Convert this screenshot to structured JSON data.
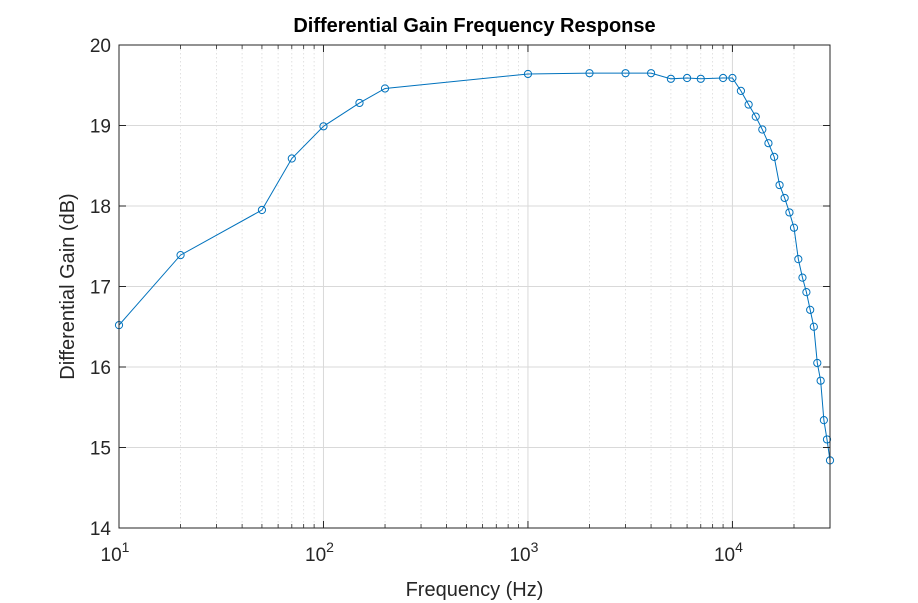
{
  "chart_data": {
    "type": "line",
    "title": "Differential Gain Frequency Response",
    "xlabel": "Frequency (Hz)",
    "ylabel": "Differential Gain (dB)",
    "xscale": "log",
    "xlim": [
      10,
      30000
    ],
    "ylim": [
      14,
      20
    ],
    "x_ticks": [
      10,
      100,
      1000,
      10000
    ],
    "x_tick_base": "10",
    "x_tick_exponents": [
      "1",
      "2",
      "3",
      "4"
    ],
    "y_ticks": [
      "14",
      "15",
      "16",
      "17",
      "18",
      "19",
      "20"
    ],
    "grid": true,
    "minor_grid_x": true,
    "legend": "none",
    "colors": {
      "line": "#0072BD",
      "grid": "#d9d9d9",
      "axes": "#262626"
    },
    "series": [
      {
        "marker": "circle",
        "x": [
          10,
          20,
          50,
          70,
          100,
          150,
          200,
          1000,
          2000,
          3000,
          4000,
          5000,
          6000,
          7000,
          9000,
          10000,
          11000,
          12000,
          13000,
          14000,
          15000,
          16000,
          17000,
          18000,
          19000,
          20000,
          21000,
          22000,
          23000,
          24000,
          25000,
          26000,
          27000,
          28000,
          29000,
          30000
        ],
        "y": [
          16.52,
          17.39,
          17.95,
          18.59,
          18.99,
          19.28,
          19.46,
          19.64,
          19.65,
          19.65,
          19.65,
          19.58,
          19.59,
          19.58,
          19.59,
          19.59,
          19.43,
          19.26,
          19.11,
          18.95,
          18.78,
          18.61,
          18.26,
          18.1,
          17.92,
          17.73,
          17.34,
          17.11,
          16.93,
          16.71,
          16.5,
          16.05,
          15.83,
          15.34,
          15.1,
          14.84
        ]
      }
    ]
  }
}
